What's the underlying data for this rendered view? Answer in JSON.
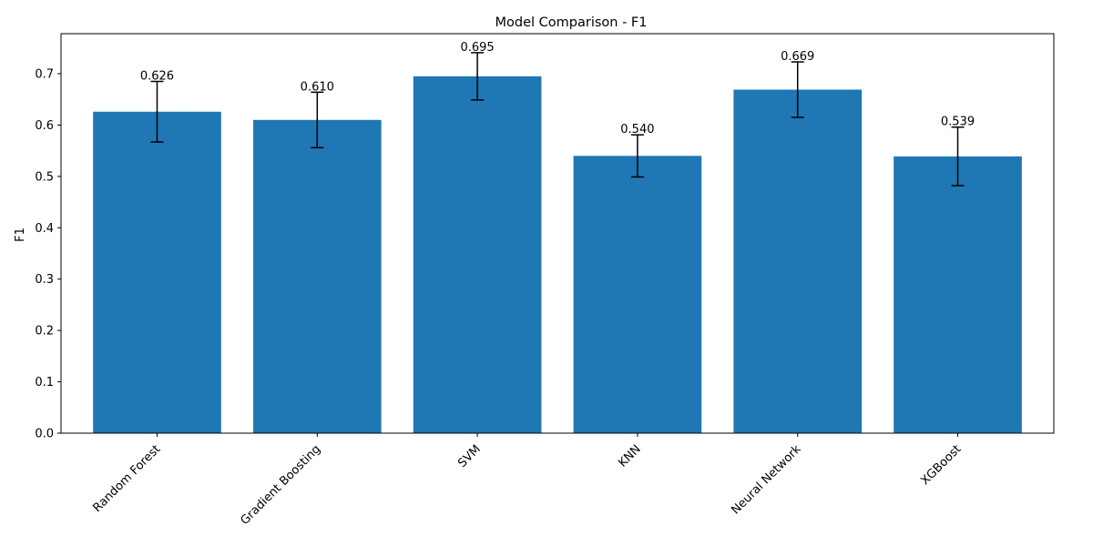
{
  "chart_data": {
    "type": "bar",
    "title": "Model Comparison - F1",
    "xlabel": "",
    "ylabel": "F1",
    "categories": [
      "Random Forest",
      "Gradient Boosting",
      "SVM",
      "KNN",
      "Neural Network",
      "XGBoost"
    ],
    "values": [
      0.626,
      0.61,
      0.695,
      0.54,
      0.669,
      0.539
    ],
    "value_labels": [
      "0.626",
      "0.610",
      "0.695",
      "0.540",
      "0.669",
      "0.539"
    ],
    "errors": [
      0.059,
      0.054,
      0.046,
      0.041,
      0.054,
      0.057
    ],
    "ylim": [
      0,
      0.778
    ],
    "yticks": [
      0.0,
      0.1,
      0.2,
      0.3,
      0.4,
      0.5,
      0.6,
      0.7
    ],
    "ytick_labels": [
      "0.0",
      "0.1",
      "0.2",
      "0.3",
      "0.4",
      "0.5",
      "0.6",
      "0.7"
    ],
    "grid": false,
    "legend": "none",
    "x_tick_rotation_deg": 45,
    "bar_color": "#1f77b4",
    "error_color": "#000000"
  }
}
